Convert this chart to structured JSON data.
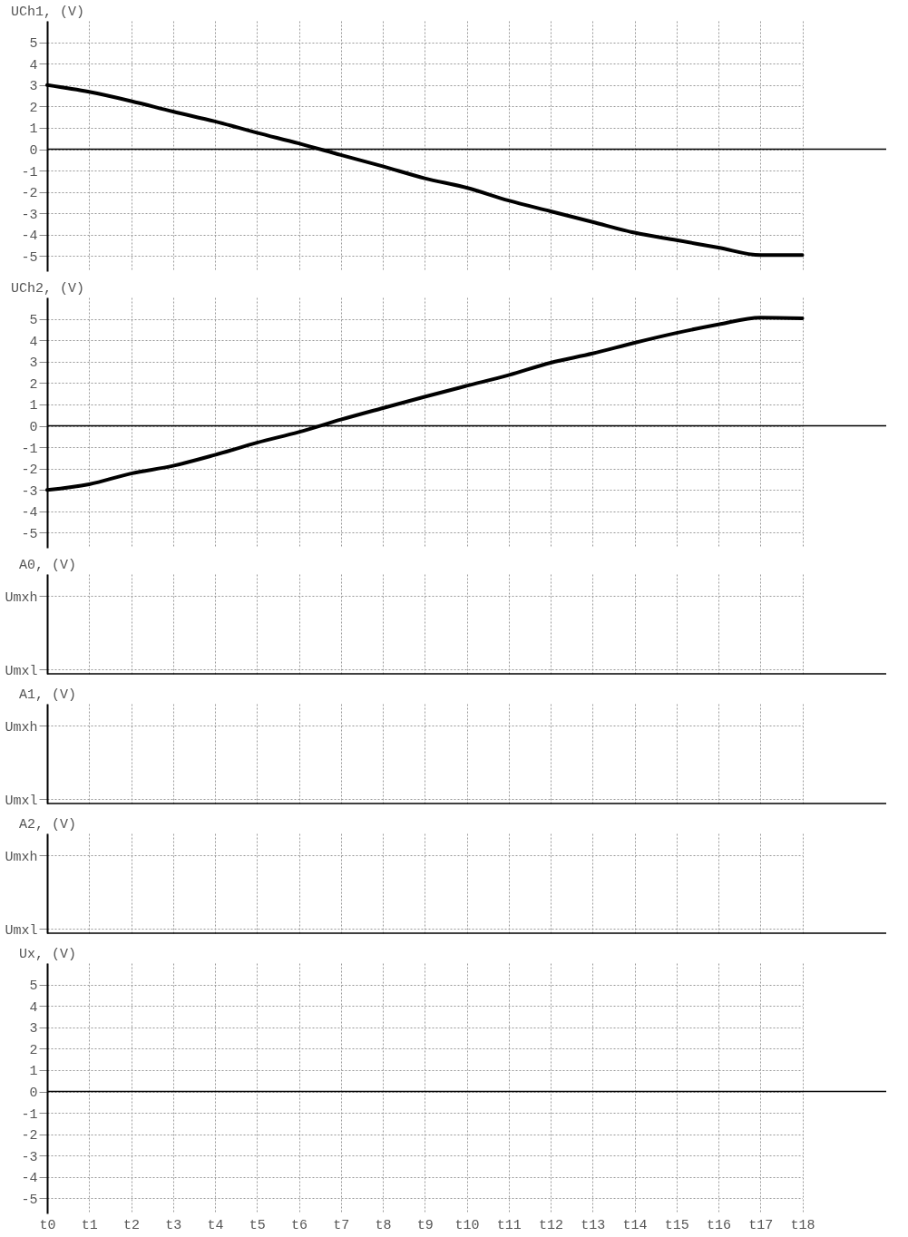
{
  "chart_data": [
    {
      "type": "line",
      "ylabel": "UCh1, (V)",
      "categories": [
        null,
        null,
        null,
        null,
        null,
        null,
        null,
        null,
        null,
        null,
        null,
        null,
        null,
        null,
        null,
        null,
        null,
        null,
        null
      ],
      "ylim": [
        -5.7,
        6
      ],
      "yticks": [
        -5,
        -4,
        -3,
        -2,
        -1,
        0,
        1,
        2,
        3,
        4,
        5
      ],
      "grid": true,
      "series": [
        {
          "color": "#000000",
          "values": [
            3.0,
            2.68,
            2.25,
            1.76,
            1.3,
            0.77,
            0.27,
            -0.27,
            -0.8,
            -1.36,
            -1.8,
            -2.4,
            -2.9,
            -3.4,
            -3.9,
            -4.25,
            -4.6,
            -4.95,
            -4.95
          ]
        }
      ],
      "ref_lines": [
        {
          "axis": "y",
          "value": 0,
          "color": "#000000"
        }
      ]
    },
    {
      "type": "line",
      "ylabel": "UCh2, (V)",
      "categories": [
        null,
        null,
        null,
        null,
        null,
        null,
        null,
        null,
        null,
        null,
        null,
        null,
        null,
        null,
        null,
        null,
        null,
        null,
        null
      ],
      "ylim": [
        -5.7,
        6
      ],
      "yticks": [
        -5,
        -4,
        -3,
        -2,
        -1,
        0,
        1,
        2,
        3,
        4,
        5
      ],
      "grid": true,
      "series": [
        {
          "color": "#000000",
          "values": [
            -3.0,
            -2.73,
            -2.23,
            -1.87,
            -1.36,
            -0.79,
            -0.29,
            0.29,
            0.83,
            1.36,
            1.87,
            2.37,
            2.95,
            3.38,
            3.88,
            4.34,
            4.74,
            5.06,
            5.03
          ]
        }
      ],
      "ref_lines": [
        {
          "axis": "y",
          "value": 0,
          "color": "#000000"
        }
      ]
    },
    {
      "type": "other",
      "ylabel": "A0, (V)",
      "categories": [
        null,
        null,
        null,
        null,
        null,
        null,
        null,
        null,
        null,
        null,
        null,
        null,
        null,
        null,
        null,
        null,
        null,
        null,
        null
      ],
      "annotations": [
        "Umxh",
        "Umxl"
      ]
    },
    {
      "type": "other",
      "ylabel": "A1, (V)",
      "categories": [
        null,
        null,
        null,
        null,
        null,
        null,
        null,
        null,
        null,
        null,
        null,
        null,
        null,
        null,
        null,
        null,
        null,
        null,
        null
      ],
      "annotations": [
        "Umxh",
        "Umxl"
      ]
    },
    {
      "type": "other",
      "ylabel": "A2, (V)",
      "categories": [
        null,
        null,
        null,
        null,
        null,
        null,
        null,
        null,
        null,
        null,
        null,
        null,
        null,
        null,
        null,
        null,
        null,
        null,
        null
      ],
      "annotations": [
        "Umxh",
        "Umxl"
      ]
    },
    {
      "type": "line",
      "ylabel": "Ux, (V)",
      "categories": [
        "t0",
        "t1",
        "t2",
        "t3",
        "t4",
        "t5",
        "t6",
        "t7",
        "t8",
        "t9",
        "t10",
        "t11",
        "t12",
        "t13",
        "t14",
        "t15",
        "t16",
        "t17",
        "t18"
      ],
      "ylim": [
        -5.7,
        6
      ],
      "yticks": [
        -5,
        -4,
        -3,
        -2,
        -1,
        0,
        1,
        2,
        3,
        4,
        5
      ],
      "grid": true,
      "ref_lines": [
        {
          "axis": "y",
          "value": 0,
          "color": "#000000"
        }
      ]
    }
  ]
}
